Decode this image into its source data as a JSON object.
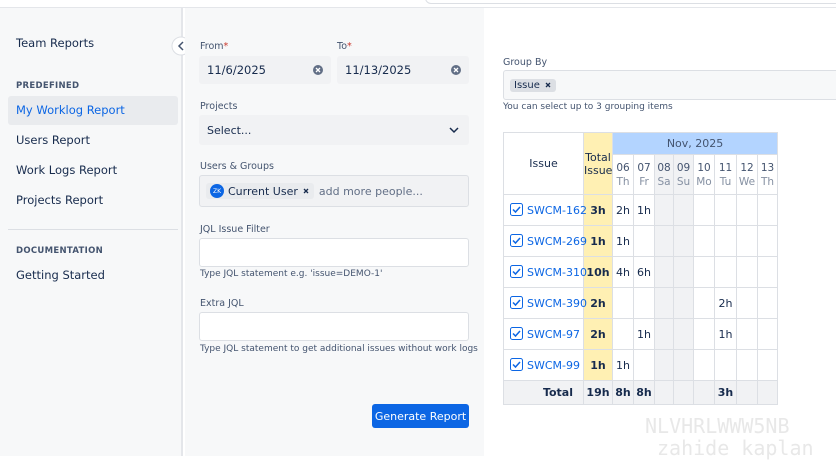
{
  "sidebar": {
    "title": "Team Reports",
    "predefined_heading": "PREDEFINED",
    "predefined_items": [
      "My Worklog Report",
      "Users Report",
      "Work Logs Report",
      "Projects Report"
    ],
    "documentation_heading": "DOCUMENTATION",
    "documentation_items": [
      "Getting Started"
    ]
  },
  "form": {
    "from": {
      "label": "From",
      "required_mark": "*",
      "value": "11/6/2025"
    },
    "to": {
      "label": "To",
      "required_mark": "*",
      "value": "11/13/2025"
    },
    "projects": {
      "label": "Projects",
      "placeholder": "Select..."
    },
    "users_groups": {
      "label": "Users & Groups",
      "chip_initials": "ZK",
      "chip_label": "Current User",
      "placeholder": "add more people..."
    },
    "jql_filter": {
      "label": "JQL Issue Filter",
      "help": "Type JQL statement e.g. 'issue=DEMO-1'"
    },
    "extra_jql": {
      "label": "Extra JQL",
      "help": "Type JQL statement to get additional issues without work logs"
    },
    "submit": "Generate Report"
  },
  "group_by": {
    "label": "Group By",
    "chip": "Issue",
    "help": "You can select up to 3 grouping items"
  },
  "table": {
    "issue_header": "Issue",
    "total_header": "Total Issue",
    "month": "Nov, 2025",
    "days": [
      {
        "day": "06",
        "weekday": "Th"
      },
      {
        "day": "07",
        "weekday": "Fr"
      },
      {
        "day": "08",
        "weekday": "Sa"
      },
      {
        "day": "09",
        "weekday": "Su"
      },
      {
        "day": "10",
        "weekday": "Mo"
      },
      {
        "day": "11",
        "weekday": "Tu"
      },
      {
        "day": "12",
        "weekday": "We"
      },
      {
        "day": "13",
        "weekday": "Th"
      }
    ],
    "rows": [
      {
        "issue": "SWCM-162",
        "total": "3h",
        "cells": [
          "2h",
          "1h",
          null,
          null,
          null,
          null,
          null,
          null
        ]
      },
      {
        "issue": "SWCM-269",
        "total": "1h",
        "cells": [
          "1h",
          null,
          null,
          null,
          null,
          null,
          null,
          null
        ]
      },
      {
        "issue": "SWCM-310",
        "total": "10h",
        "cells": [
          "4h",
          "6h",
          null,
          null,
          null,
          null,
          null,
          null
        ]
      },
      {
        "issue": "SWCM-390",
        "total": "2h",
        "cells": [
          null,
          null,
          null,
          null,
          null,
          "2h",
          null,
          null
        ]
      },
      {
        "issue": "SWCM-97",
        "total": "2h",
        "cells": [
          null,
          "1h",
          null,
          null,
          null,
          "1h",
          null,
          null
        ]
      },
      {
        "issue": "SWCM-99",
        "total": "1h",
        "cells": [
          "1h",
          null,
          null,
          null,
          null,
          null,
          null,
          null
        ]
      }
    ],
    "total_row": {
      "label": "Total",
      "total": "19h",
      "cells": [
        "8h",
        "8h",
        null,
        null,
        null,
        "3h",
        null,
        null
      ]
    }
  },
  "watermark": [
    "NLVHRLWWW5NB",
    "zahide kaplan"
  ]
}
